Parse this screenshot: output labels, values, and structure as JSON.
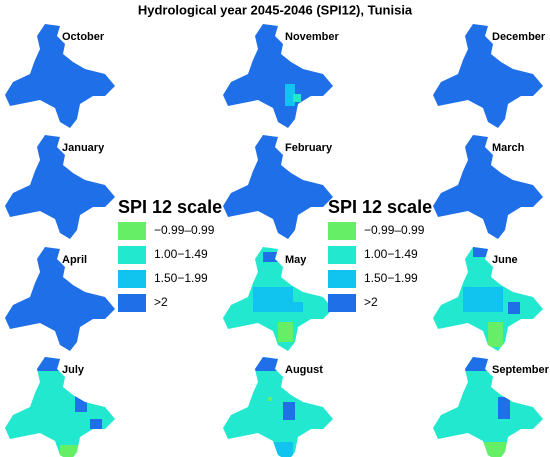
{
  "title": "Hydrological year 2045-2046 (SPI12), Tunisia",
  "panels": [
    {
      "label": "October",
      "color": "#1f6fe8"
    },
    {
      "label": "November",
      "color": "#1f6fe8"
    },
    {
      "label": "December",
      "color": "#1f6fe8"
    },
    {
      "label": "January",
      "color": "#1f6fe8"
    },
    {
      "label": "February",
      "color": "#1f6fe8"
    },
    {
      "label": "March",
      "color": "#1f6fe8"
    },
    {
      "label": "April",
      "color": "#1f6fe8"
    },
    {
      "label": "May",
      "color": "#22e8d0"
    },
    {
      "label": "June",
      "color": "#22e8d0"
    },
    {
      "label": "July",
      "color": "#22e8d0"
    },
    {
      "label": "August",
      "color": "#22e8d0"
    },
    {
      "label": "September",
      "color": "#22e8d0"
    }
  ],
  "legends": [
    {
      "title": "SPI 12 scale",
      "items": [
        {
          "label": "−0.99–0.99",
          "color": "#66ee66"
        },
        {
          "label": "1.00−1.49",
          "color": "#22e8d0"
        },
        {
          "label": "1.50−1.99",
          "color": "#11c4f0"
        },
        {
          "label": ">2",
          "color": "#1f6fe8"
        }
      ]
    },
    {
      "title": "SPI 12 scale",
      "items": [
        {
          "label": "−0.99–0.99",
          "color": "#66ee66"
        },
        {
          "label": "1.00−1.49",
          "color": "#22e8d0"
        },
        {
          "label": "1.50−1.99",
          "color": "#11c4f0"
        },
        {
          "label": ">2",
          "color": "#1f6fe8"
        }
      ]
    }
  ]
}
